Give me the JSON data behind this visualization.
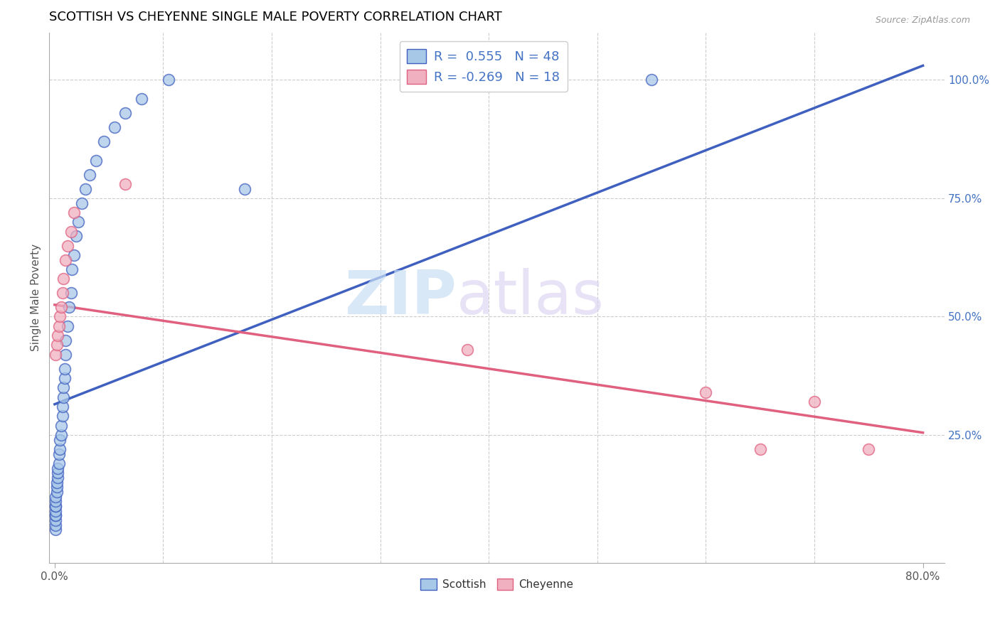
{
  "title": "SCOTTISH VS CHEYENNE SINGLE MALE POVERTY CORRELATION CHART",
  "source": "Source: ZipAtlas.com",
  "ylabel": "Single Male Poverty",
  "right_yticks": [
    "100.0%",
    "75.0%",
    "50.0%",
    "25.0%"
  ],
  "right_ytick_vals": [
    1.0,
    0.75,
    0.5,
    0.25
  ],
  "legend_blue_label": "R =  0.555   N = 48",
  "legend_pink_label": "R = -0.269   N = 18",
  "blue_color": "#a8c8e8",
  "pink_color": "#f0b0c0",
  "line_blue": "#4060c0",
  "line_pink": "#e06080",
  "blue_line_x0": 0.0,
  "blue_line_x1": 0.8,
  "blue_line_y0": 0.315,
  "blue_line_y1": 1.03,
  "pink_line_x0": 0.0,
  "pink_line_x1": 0.8,
  "pink_line_y0": 0.525,
  "pink_line_y1": 0.255,
  "scottish_x": [
    0.001,
    0.001,
    0.001,
    0.001,
    0.001,
    0.001,
    0.001,
    0.001,
    0.001,
    0.001,
    0.002,
    0.002,
    0.002,
    0.003,
    0.003,
    0.003,
    0.004,
    0.004,
    0.005,
    0.005,
    0.006,
    0.006,
    0.007,
    0.007,
    0.008,
    0.008,
    0.009,
    0.009,
    0.01,
    0.01,
    0.012,
    0.013,
    0.015,
    0.016,
    0.018,
    0.02,
    0.022,
    0.025,
    0.028,
    0.032,
    0.038,
    0.045,
    0.055,
    0.065,
    0.08,
    0.105,
    0.175,
    0.55
  ],
  "scottish_y": [
    0.05,
    0.06,
    0.07,
    0.08,
    0.08,
    0.09,
    0.1,
    0.1,
    0.11,
    0.12,
    0.13,
    0.14,
    0.15,
    0.16,
    0.17,
    0.18,
    0.19,
    0.21,
    0.22,
    0.24,
    0.25,
    0.27,
    0.29,
    0.31,
    0.33,
    0.35,
    0.37,
    0.39,
    0.42,
    0.45,
    0.48,
    0.52,
    0.55,
    0.6,
    0.63,
    0.67,
    0.7,
    0.74,
    0.77,
    0.8,
    0.83,
    0.87,
    0.9,
    0.93,
    0.96,
    1.0,
    0.77,
    1.0
  ],
  "cheyenne_x": [
    0.001,
    0.002,
    0.003,
    0.004,
    0.005,
    0.006,
    0.007,
    0.008,
    0.01,
    0.012,
    0.015,
    0.018,
    0.065,
    0.38,
    0.6,
    0.65,
    0.7,
    0.75
  ],
  "cheyenne_y": [
    0.42,
    0.44,
    0.46,
    0.48,
    0.5,
    0.52,
    0.55,
    0.58,
    0.62,
    0.65,
    0.68,
    0.72,
    0.78,
    0.43,
    0.34,
    0.22,
    0.32,
    0.22
  ],
  "xmin": -0.005,
  "xmax": 0.82,
  "ymin": -0.02,
  "ymax": 1.1,
  "grid_x": [
    0.1,
    0.2,
    0.3,
    0.4,
    0.5,
    0.6,
    0.7
  ]
}
